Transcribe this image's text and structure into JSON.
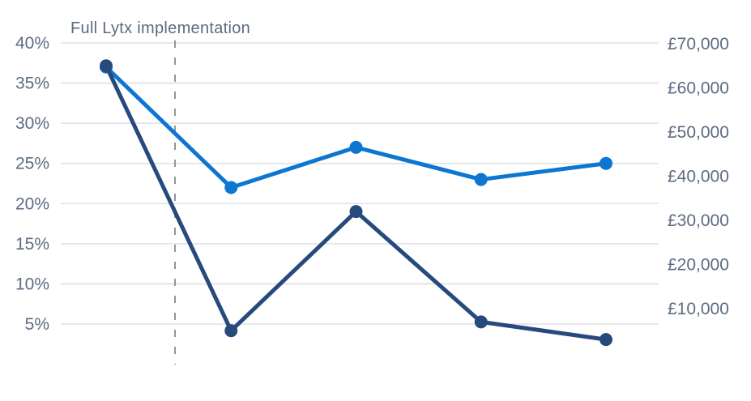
{
  "chart_data": {
    "type": "line",
    "title": "",
    "annotation": {
      "text": "Full Lytx implementation",
      "marker": "vertical dashed line between data point 1 and data point 2"
    },
    "left_axis": {
      "unit": "percent",
      "tick_labels": [
        "40%",
        "35%",
        "30%",
        "25%",
        "20%",
        "15%",
        "10%",
        "5%"
      ],
      "tick_values": [
        40,
        35,
        30,
        25,
        20,
        15,
        10,
        5
      ],
      "range": [
        5,
        40
      ]
    },
    "right_axis": {
      "unit": "GBP",
      "tick_labels": [
        "£70,000",
        "£60,000",
        "£50,000",
        "£40,000",
        "£30,000",
        "£20,000",
        "£10,000"
      ],
      "tick_values": [
        70000,
        60000,
        50000,
        40000,
        30000,
        20000,
        10000
      ],
      "range": [
        10000,
        70000
      ]
    },
    "x_labels": [
      "",
      "",
      "",
      "",
      ""
    ],
    "series": [
      {
        "name": "percentage-series-light-blue",
        "axis": "left",
        "color": "#0d76d1",
        "values": [
          37,
          22,
          27,
          23,
          25
        ]
      },
      {
        "name": "cost-series-dark-navy",
        "axis": "right",
        "color": "#274a7d",
        "values": [
          65000,
          5000,
          32000,
          7000,
          3000
        ]
      }
    ],
    "legend": "none",
    "gridlines": "horizontal only",
    "colors": {
      "grid": "#d9dbdf",
      "axis_text": "#5d6b82",
      "dashed_line": "#8f969e",
      "background": "#ffffff"
    }
  }
}
